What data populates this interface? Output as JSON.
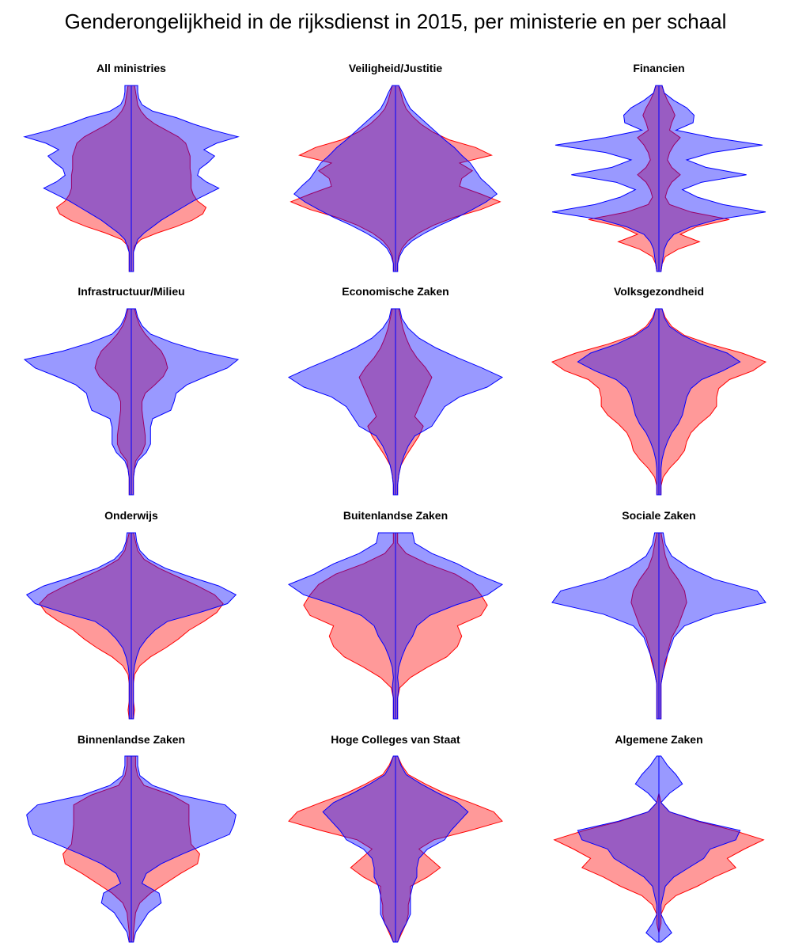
{
  "title": "Genderongelijkheid in de rijksdienst in 2015, per ministerie en per schaal",
  "colors": {
    "female_fill": "rgba(255,0,0,0.4)",
    "female_stroke": "#ff0000",
    "male_fill": "rgba(0,0,255,0.4)",
    "male_stroke": "#0000ff"
  },
  "chart_data": [
    {
      "type": "area",
      "title": "All ministries",
      "female": [
        0.03,
        0.04,
        0.05,
        0.06,
        0.09,
        0.14,
        0.22,
        0.33,
        0.44,
        0.51,
        0.53,
        0.55,
        0.55,
        0.55,
        0.56,
        0.56,
        0.56,
        0.58,
        0.62,
        0.7,
        0.67,
        0.57,
        0.42,
        0.24,
        0.09,
        0.03,
        0.02,
        0.02,
        0.02,
        0.02
      ],
      "male": [
        0.06,
        0.06,
        0.07,
        0.1,
        0.2,
        0.42,
        0.58,
        0.77,
        1.0,
        0.8,
        0.68,
        0.78,
        0.72,
        0.64,
        0.62,
        0.7,
        0.82,
        0.7,
        0.58,
        0.48,
        0.38,
        0.28,
        0.2,
        0.12,
        0.06,
        0.04,
        0.02,
        0.02,
        0.02,
        0.02
      ]
    },
    {
      "type": "area",
      "title": "Veiligheid/Justitie",
      "female": [
        0.03,
        0.05,
        0.07,
        0.1,
        0.16,
        0.24,
        0.35,
        0.5,
        0.75,
        0.9,
        0.6,
        0.72,
        0.62,
        0.6,
        0.8,
        0.98,
        0.8,
        0.55,
        0.36,
        0.22,
        0.12,
        0.06,
        0.03,
        0.02,
        0.02
      ],
      "male": [
        0.03,
        0.07,
        0.1,
        0.14,
        0.22,
        0.3,
        0.38,
        0.46,
        0.55,
        0.62,
        0.7,
        0.75,
        0.8,
        0.88,
        0.95,
        0.85,
        0.72,
        0.58,
        0.42,
        0.28,
        0.16,
        0.08,
        0.04,
        0.02,
        0.02
      ]
    },
    {
      "type": "area",
      "title": "Financien",
      "female": [
        0.03,
        0.05,
        0.08,
        0.12,
        0.15,
        0.12,
        0.1,
        0.2,
        0.14,
        0.1,
        0.08,
        0.12,
        0.2,
        0.12,
        0.08,
        0.06,
        0.1,
        0.3,
        0.66,
        0.35,
        0.2,
        0.38,
        0.18,
        0.06,
        0.03,
        0.02
      ],
      "male": [
        0.03,
        0.05,
        0.14,
        0.26,
        0.33,
        0.32,
        0.16,
        0.5,
        0.97,
        0.5,
        0.26,
        0.44,
        0.82,
        0.4,
        0.22,
        0.36,
        0.6,
        1.0,
        0.55,
        0.3,
        0.14,
        0.08,
        0.05,
        0.04,
        0.03,
        0.02
      ]
    },
    {
      "type": "area",
      "title": "Infrastructuur/Milieu",
      "female": [
        0.03,
        0.05,
        0.08,
        0.13,
        0.2,
        0.28,
        0.32,
        0.34,
        0.3,
        0.22,
        0.13,
        0.1,
        0.1,
        0.11,
        0.12,
        0.13,
        0.13,
        0.1,
        0.04,
        0.03,
        0.02,
        0.02,
        0.02
      ],
      "male": [
        0.04,
        0.06,
        0.1,
        0.18,
        0.38,
        0.64,
        1.0,
        0.9,
        0.7,
        0.52,
        0.42,
        0.4,
        0.37,
        0.2,
        0.18,
        0.18,
        0.18,
        0.14,
        0.06,
        0.03,
        0.02,
        0.02,
        0.02
      ],
      "male_ext": "cusp"
    },
    {
      "type": "area",
      "title": "Economische Zaken",
      "female": [
        0.03,
        0.05,
        0.07,
        0.1,
        0.14,
        0.2,
        0.28,
        0.34,
        0.3,
        0.26,
        0.22,
        0.18,
        0.26,
        0.22,
        0.16,
        0.1,
        0.05,
        0.03,
        0.02,
        0.02
      ],
      "male": [
        0.04,
        0.06,
        0.12,
        0.22,
        0.38,
        0.58,
        0.8,
        1.0,
        0.86,
        0.6,
        0.46,
        0.4,
        0.34,
        0.18,
        0.12,
        0.08,
        0.05,
        0.03,
        0.02,
        0.02
      ]
    },
    {
      "type": "area",
      "title": "Volksgezondheid",
      "female": [
        0.03,
        0.06,
        0.12,
        0.24,
        0.48,
        0.78,
        1.0,
        0.88,
        0.66,
        0.56,
        0.54,
        0.54,
        0.48,
        0.38,
        0.3,
        0.26,
        0.24,
        0.18,
        0.1,
        0.04,
        0.02,
        0.02
      ],
      "male": [
        0.03,
        0.05,
        0.1,
        0.22,
        0.4,
        0.64,
        0.76,
        0.6,
        0.4,
        0.3,
        0.26,
        0.24,
        0.22,
        0.18,
        0.12,
        0.08,
        0.05,
        0.03,
        0.02,
        0.02,
        0.02,
        0.02
      ]
    },
    {
      "type": "area",
      "title": "Onderwijs",
      "female": [
        0.02,
        0.04,
        0.06,
        0.12,
        0.26,
        0.44,
        0.62,
        0.78,
        0.86,
        0.8,
        0.68,
        0.54,
        0.44,
        0.32,
        0.18,
        0.08,
        0.03,
        0.02,
        0.02,
        0.02,
        0.03,
        0.02
      ],
      "male": [
        0.04,
        0.05,
        0.08,
        0.16,
        0.32,
        0.56,
        0.82,
        0.98,
        0.9,
        0.64,
        0.34,
        0.22,
        0.14,
        0.08,
        0.05,
        0.03,
        0.02,
        0.02,
        0.02,
        0.02,
        0.02,
        0.02
      ]
    },
    {
      "type": "area",
      "title": "Buitenlandse Zaken",
      "female": [
        0.02,
        0.02,
        0.1,
        0.3,
        0.56,
        0.72,
        0.8,
        0.86,
        0.8,
        0.58,
        0.62,
        0.58,
        0.48,
        0.3,
        0.14,
        0.04,
        0.02,
        0.02,
        0.02
      ],
      "male": [
        0.16,
        0.18,
        0.34,
        0.58,
        0.76,
        1.0,
        0.86,
        0.56,
        0.32,
        0.2,
        0.16,
        0.1,
        0.06,
        0.03,
        0.02,
        0.03,
        0.02,
        0.02,
        0.02
      ]
    },
    {
      "type": "area",
      "title": "Sociale Zaken",
      "female": [
        0.02,
        0.04,
        0.06,
        0.1,
        0.18,
        0.24,
        0.26,
        0.22,
        0.18,
        0.12,
        0.09,
        0.07,
        0.04,
        0.02,
        0.02,
        0.02,
        0.02
      ],
      "male": [
        0.04,
        0.06,
        0.12,
        0.28,
        0.52,
        0.92,
        1.0,
        0.52,
        0.24,
        0.14,
        0.1,
        0.06,
        0.04,
        0.02,
        0.02,
        0.02,
        0.02
      ]
    },
    {
      "type": "area",
      "title": "Binnenlandse Zaken",
      "female": [
        0.04,
        0.04,
        0.06,
        0.12,
        0.38,
        0.54,
        0.54,
        0.54,
        0.55,
        0.56,
        0.64,
        0.62,
        0.46,
        0.32,
        0.18,
        0.08,
        0.04,
        0.03,
        0.02,
        0.02
      ],
      "male": [
        0.06,
        0.06,
        0.08,
        0.2,
        0.46,
        0.88,
        0.98,
        0.96,
        0.92,
        0.7,
        0.48,
        0.28,
        0.14,
        0.1,
        0.26,
        0.28,
        0.16,
        0.1,
        0.04,
        0.02
      ]
    },
    {
      "type": "area",
      "title": "Hoge Colleges van Staat",
      "female": [
        0.02,
        0.06,
        0.12,
        0.28,
        0.46,
        0.7,
        0.92,
        1.0,
        0.7,
        0.36,
        0.22,
        0.32,
        0.42,
        0.3,
        0.14,
        0.14,
        0.12,
        0.12,
        0.1,
        0.06,
        0.02
      ],
      "male": [
        0.02,
        0.05,
        0.1,
        0.24,
        0.4,
        0.58,
        0.68,
        0.6,
        0.52,
        0.46,
        0.3,
        0.22,
        0.2,
        0.2,
        0.16,
        0.14,
        0.14,
        0.14,
        0.1,
        0.05,
        0.02
      ],
      "male_ext": "cusp"
    },
    {
      "type": "area",
      "title": "Algemene Zaken",
      "female": [
        0.0,
        0.0,
        0.0,
        0.0,
        0.0,
        0.02,
        0.1,
        0.36,
        0.7,
        0.98,
        0.8,
        0.64,
        0.72,
        0.52,
        0.36,
        0.16,
        0.06,
        0.02,
        0.02,
        0.0,
        0.0
      ],
      "male": [
        0.02,
        0.08,
        0.16,
        0.22,
        0.1,
        0.02,
        0.1,
        0.38,
        0.76,
        0.72,
        0.48,
        0.42,
        0.28,
        0.14,
        0.06,
        0.04,
        0.02,
        0.02,
        0.06,
        0.12,
        0.02
      ]
    }
  ]
}
